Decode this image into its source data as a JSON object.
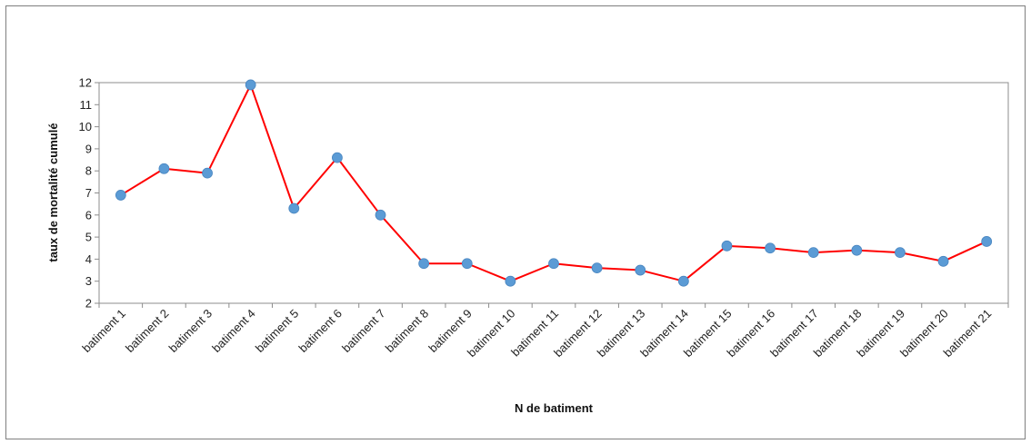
{
  "chart_data": {
    "type": "line",
    "title": "",
    "xlabel": "N de batiment",
    "ylabel": "taux de mortalité cumulé",
    "ylim": [
      2,
      12
    ],
    "y_ticks": [
      2,
      3,
      4,
      5,
      6,
      7,
      8,
      9,
      10,
      11,
      12
    ],
    "grid": false,
    "legend": "none",
    "categories": [
      "batiment 1",
      "batiment 2",
      "batiment 3",
      "batiment 4",
      "batiment 5",
      "batiment 6",
      "batiment 7",
      "batiment 8",
      "batiment 9",
      "batiment 10",
      "batiment 11",
      "batiment 12",
      "batiment 13",
      "batiment 14",
      "batiment 15",
      "batiment 16",
      "batiment 17",
      "batiment 18",
      "batiment 19",
      "batiment 20",
      "batiment 21"
    ],
    "series": [
      {
        "values": [
          6.9,
          8.1,
          7.9,
          11.9,
          6.3,
          8.6,
          6.0,
          3.8,
          3.8,
          3.0,
          3.8,
          3.6,
          3.5,
          3.0,
          4.6,
          4.5,
          4.3,
          4.4,
          4.3,
          3.9,
          4.8
        ],
        "line_color": "#ff0000",
        "marker_color": "#5b9bd5"
      }
    ]
  }
}
